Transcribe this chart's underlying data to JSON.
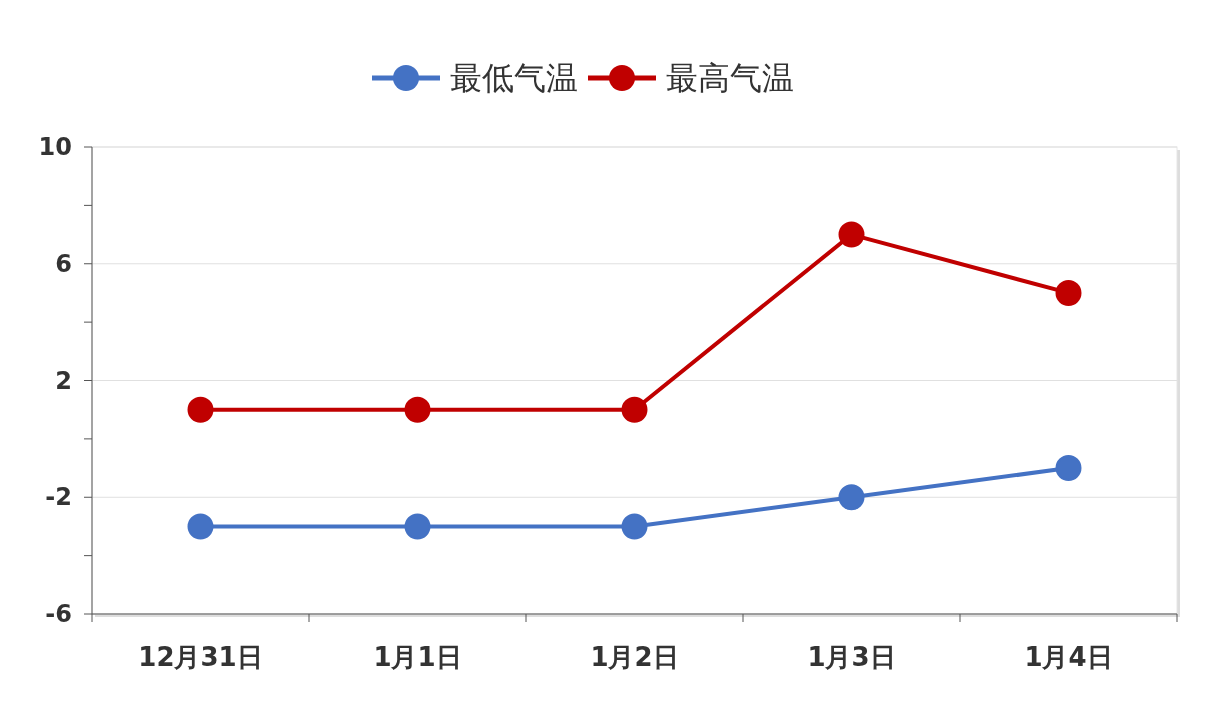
{
  "chart_data": {
    "type": "line",
    "categories": [
      "12月31日",
      "1月1日",
      "1月2日",
      "1月3日",
      "1月4日"
    ],
    "series": [
      {
        "name": "最低气温",
        "color": "#4472c4",
        "values": [
          -3,
          -3,
          -3,
          -2,
          -1
        ]
      },
      {
        "name": "最高气温",
        "color": "#c00000",
        "values": [
          1,
          1,
          1,
          7,
          5
        ]
      }
    ],
    "ylim": [
      -6,
      10
    ],
    "yticks": [
      -6,
      {
        "value": -4,
        "label": null
      },
      -2,
      {
        "value": 0,
        "label": null
      },
      2,
      {
        "value": 4,
        "label": null
      },
      6,
      {
        "value": 8,
        "label": null
      },
      10
    ],
    "grid": "y",
    "legend": "top",
    "marker": "circle",
    "line_style": "solid"
  }
}
